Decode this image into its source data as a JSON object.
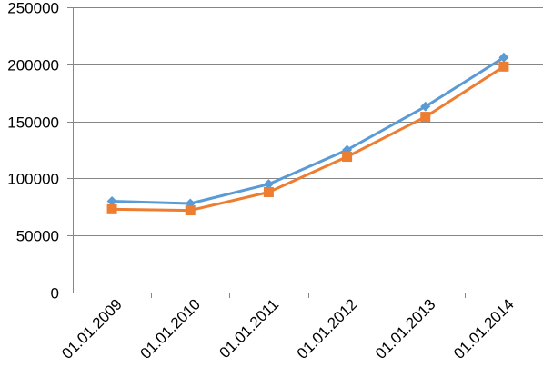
{
  "chart_data": {
    "type": "line",
    "title": "",
    "xlabel": "",
    "ylabel": "",
    "categories": [
      "01.01.2009",
      "01.01.2010",
      "01.01.2011",
      "01.01.2012",
      "01.01.2013",
      "01.01.2014"
    ],
    "ylim": [
      0,
      250000
    ],
    "yticks": [
      "0",
      "50000",
      "100000",
      "150000",
      "200000",
      "250000"
    ],
    "grid": true,
    "legend": "none",
    "series": [
      {
        "values": [
          80000,
          78000,
          95000,
          125000,
          163000,
          206000
        ],
        "color": "#5B9BD5",
        "marker": "diamond"
      },
      {
        "values": [
          73000,
          72000,
          88000,
          119000,
          154000,
          198000
        ],
        "color": "#ED7D31",
        "marker": "square"
      }
    ]
  }
}
